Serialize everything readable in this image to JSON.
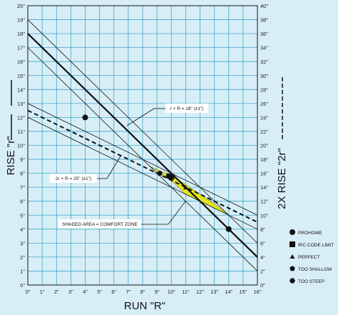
{
  "chart_data": {
    "type": "line",
    "xlabel": "RUN \"R\"",
    "ylabel": "RISE \"r\"",
    "y2label": "2X RISE \"2r\"",
    "xlim": [
      0,
      16
    ],
    "ylim": [
      0,
      20
    ],
    "y2lim": [
      0,
      40
    ],
    "grid": true,
    "x_ticks": [
      "0\"",
      "1\"",
      "2\"",
      "3\"",
      "4\"",
      "5\"",
      "6\"",
      "7\"",
      "8\"",
      "9\"",
      "10\"",
      "11\"",
      "12\"",
      "13\"",
      "14\"",
      "15\"",
      "16\""
    ],
    "y_ticks": [
      "0\"",
      "1\"",
      "2\"",
      "3\"",
      "4\"",
      "5\"",
      "6\"",
      "7\"",
      "8\"",
      "9\"",
      "10\"",
      "11\"",
      "12\"",
      "13\"",
      "14\"",
      "15\"",
      "16\"",
      "17\"",
      "18\"",
      "19\"",
      "20\""
    ],
    "y2_ticks": [
      "0\"",
      "2\"",
      "4\"",
      "6\"",
      "8\"",
      "10\"",
      "12\"",
      "14\"",
      "16\"",
      "18\"",
      "20\"",
      "22\"",
      "24\"",
      "26\"",
      "28\"",
      "30\"",
      "32\"",
      "34\"",
      "36\"",
      "38\"",
      "40\""
    ],
    "lines": [
      {
        "id": "r-plus-R-18",
        "style": "solid-thick",
        "points": [
          [
            0,
            18
          ],
          [
            16,
            2
          ]
        ]
      },
      {
        "id": "r-plus-R-17",
        "style": "solid-thin",
        "points": [
          [
            0,
            17
          ],
          [
            16,
            1
          ]
        ]
      },
      {
        "id": "r-plus-R-19",
        "style": "solid-thin",
        "points": [
          [
            0,
            19
          ],
          [
            16,
            3
          ]
        ]
      },
      {
        "id": "2r-plus-R-25",
        "style": "dashed-thick",
        "points": [
          [
            0,
            12.5
          ],
          [
            16,
            4.5
          ]
        ]
      },
      {
        "id": "2r-plus-R-24",
        "style": "solid-thin",
        "points": [
          [
            0,
            12
          ],
          [
            16,
            4
          ]
        ]
      },
      {
        "id": "2r-plus-R-26",
        "style": "solid-thin",
        "points": [
          [
            0,
            13
          ],
          [
            16,
            5
          ]
        ]
      }
    ],
    "comfort_zone": {
      "polygon": [
        [
          8.5,
          8.5
        ],
        [
          10,
          7.5
        ],
        [
          11,
          6.5
        ],
        [
          12,
          6
        ],
        [
          14,
          5
        ],
        [
          13,
          5.8
        ],
        [
          12,
          6.5
        ],
        [
          11,
          7.2
        ],
        [
          10,
          7.8
        ]
      ]
    },
    "points": [
      {
        "series": "PROHOME",
        "marker": "circle",
        "x": 4,
        "y": 12
      },
      {
        "series": "PROHOME",
        "marker": "circle",
        "x": 14,
        "y": 4
      },
      {
        "series": "IRC CODE LIMIT",
        "marker": "square",
        "x": 10,
        "y": 7.75
      },
      {
        "series": "PERFECT",
        "marker": "triangle",
        "x": 11,
        "y": 7
      },
      {
        "series": "TOO SHALLOW",
        "marker": "pentagon",
        "x": 9.2,
        "y": 8
      },
      {
        "series": "TOO STEEP",
        "marker": "hexagon",
        "x": 9.8,
        "y": 7.8
      }
    ],
    "annotations": [
      {
        "text": "r + R = 18\" (±1\")"
      },
      {
        "text": "2r + R = 25\" (±1\")"
      },
      {
        "text": "SHADED AREA = COMFORT ZONE"
      }
    ],
    "legend": {
      "placement": "bottom-right",
      "entries": [
        {
          "label": "PROHOME",
          "marker": "circle"
        },
        {
          "label": "IRC CODE LIMIT",
          "marker": "square"
        },
        {
          "label": "PERFECT",
          "marker": "triangle"
        },
        {
          "label": "TOO SHALLOW",
          "marker": "pentagon"
        },
        {
          "label": "TOO STEEP",
          "marker": "hexagon"
        }
      ]
    },
    "colors": {
      "background": "#d8eef7",
      "grid": "#3ea6c8",
      "line": "#111111",
      "zone_fill": "#e3e41e"
    }
  }
}
